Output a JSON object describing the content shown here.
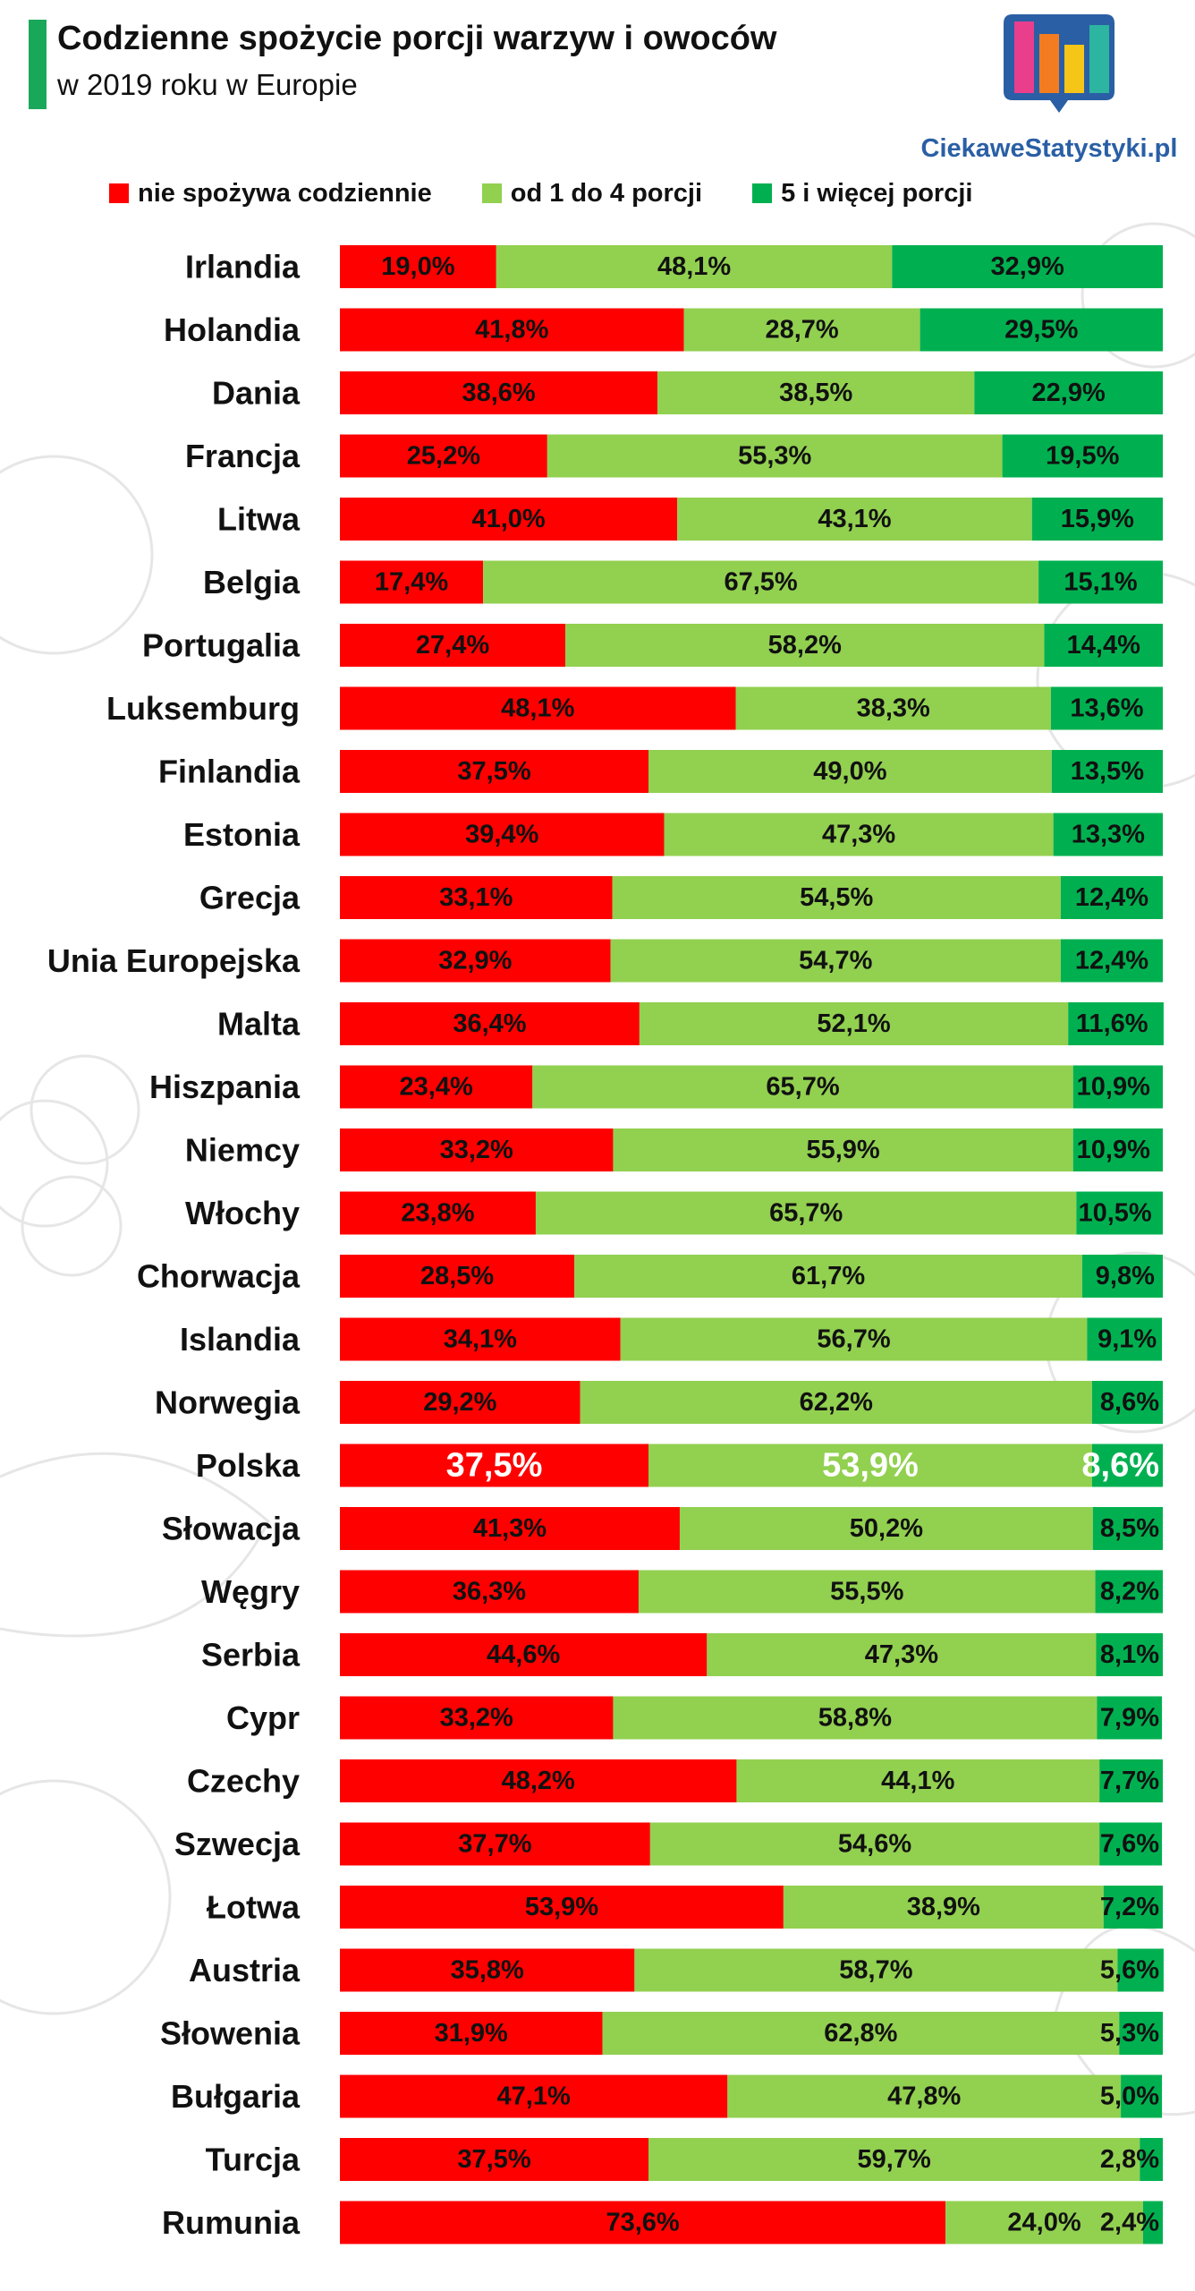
{
  "title": "Codzienne spożycie porcji warzyw i owoców",
  "subtitle": "w 2019 roku w Europie",
  "logo": {
    "text": "CiekaweStatystyki.pl",
    "icon": "bar-chart-speech-bubble-icon"
  },
  "colors": {
    "accent": "#19a85a",
    "red": "#ff0000",
    "lightgreen": "#92d050",
    "darkgreen": "#00b050",
    "highlight_text": "#ffffff",
    "text": "#111111"
  },
  "chart_data": {
    "type": "bar",
    "orientation": "horizontal",
    "stacked": true,
    "normalized_percent": true,
    "value_format": "comma-decimal-percent",
    "highlighted_category": "Polska",
    "legend_position": "top",
    "categories": [
      "Irlandia",
      "Holandia",
      "Dania",
      "Francja",
      "Litwa",
      "Belgia",
      "Portugalia",
      "Luksemburg",
      "Finlandia",
      "Estonia",
      "Grecja",
      "Unia Europejska",
      "Malta",
      "Hiszpania",
      "Niemcy",
      "Włochy",
      "Chorwacja",
      "Islandia",
      "Norwegia",
      "Polska",
      "Słowacja",
      "Węgry",
      "Serbia",
      "Cypr",
      "Czechy",
      "Szwecja",
      "Łotwa",
      "Austria",
      "Słowenia",
      "Bułgaria",
      "Turcja",
      "Rumunia"
    ],
    "series": [
      {
        "name": "nie spożywa codziennie",
        "color": "#ff0000",
        "values": [
          19.0,
          41.8,
          38.6,
          25.2,
          41.0,
          17.4,
          27.4,
          48.1,
          37.5,
          39.4,
          33.1,
          32.9,
          36.4,
          23.4,
          33.2,
          23.8,
          28.5,
          34.1,
          29.2,
          37.5,
          41.3,
          36.3,
          44.6,
          33.2,
          48.2,
          37.7,
          53.9,
          35.8,
          31.9,
          47.1,
          37.5,
          73.6
        ]
      },
      {
        "name": "od 1 do 4 porcji",
        "color": "#92d050",
        "values": [
          48.1,
          28.7,
          38.5,
          55.3,
          43.1,
          67.5,
          58.2,
          38.3,
          49.0,
          47.3,
          54.5,
          54.7,
          52.1,
          65.7,
          55.9,
          65.7,
          61.7,
          56.7,
          62.2,
          53.9,
          50.2,
          55.5,
          47.3,
          58.8,
          44.1,
          54.6,
          38.9,
          58.7,
          62.8,
          47.8,
          59.7,
          24.0
        ]
      },
      {
        "name": "5 i więcej porcji",
        "color": "#00b050",
        "values": [
          32.9,
          29.5,
          22.9,
          19.5,
          15.9,
          15.1,
          14.4,
          13.6,
          13.5,
          13.3,
          12.4,
          12.4,
          11.6,
          10.9,
          10.9,
          10.5,
          9.8,
          9.1,
          8.6,
          8.6,
          8.5,
          8.2,
          8.1,
          7.9,
          7.7,
          7.6,
          7.2,
          5.6,
          5.3,
          5.0,
          2.8,
          2.4
        ]
      }
    ]
  }
}
